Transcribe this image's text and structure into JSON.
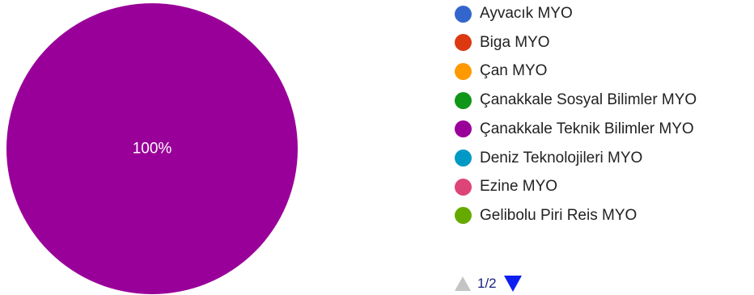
{
  "chart_data": {
    "type": "pie",
    "slices": [
      {
        "label": "Çanakkale Teknik Bilimler MYO",
        "value": 100,
        "color": "#990099",
        "data_label": "100%"
      }
    ],
    "legend": {
      "placement": "right",
      "items": [
        {
          "label": "Ayvacık MYO",
          "color": "#3366cc"
        },
        {
          "label": "Biga MYO",
          "color": "#dc3912"
        },
        {
          "label": "Çan MYO",
          "color": "#ff9900"
        },
        {
          "label": "Çanakkale Sosyal Bilimler MYO",
          "color": "#109618"
        },
        {
          "label": "Çanakkale Teknik Bilimler MYO",
          "color": "#990099"
        },
        {
          "label": "Deniz Teknolojileri MYO",
          "color": "#0099c6"
        },
        {
          "label": "Ezine MYO",
          "color": "#dd4477"
        },
        {
          "label": "Gelibolu Piri Reis MYO",
          "color": "#66aa00"
        }
      ]
    }
  },
  "pager": {
    "text": "1/2",
    "prev_icon": "triangle-up-icon",
    "next_icon": "triangle-down-icon"
  }
}
